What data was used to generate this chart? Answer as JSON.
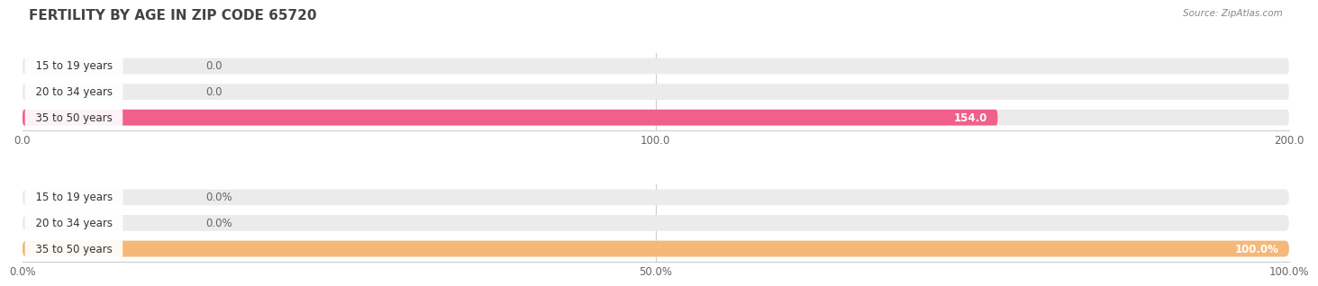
{
  "title": "FERTILITY BY AGE IN ZIP CODE 65720",
  "source": "Source: ZipAtlas.com",
  "top_chart": {
    "categories": [
      "15 to 19 years",
      "20 to 34 years",
      "35 to 50 years"
    ],
    "values": [
      0.0,
      0.0,
      154.0
    ],
    "bar_color": "#f0608a",
    "label_color_inside": "#ffffff",
    "label_color_outside": "#666666",
    "xlim": [
      0,
      200
    ],
    "xticks": [
      0.0,
      100.0,
      200.0
    ],
    "xtick_labels": [
      "0.0",
      "100.0",
      "200.0"
    ],
    "bg_color": "#ebebeb"
  },
  "bottom_chart": {
    "categories": [
      "15 to 19 years",
      "20 to 34 years",
      "35 to 50 years"
    ],
    "values": [
      0.0,
      0.0,
      100.0
    ],
    "bar_color": "#f5b878",
    "label_color_inside": "#ffffff",
    "label_color_outside": "#666666",
    "xlim": [
      0,
      100
    ],
    "xticks": [
      0.0,
      50.0,
      100.0
    ],
    "xtick_labels": [
      "0.0%",
      "50.0%",
      "100.0%"
    ],
    "bg_color": "#ebebeb"
  },
  "background_color": "#ffffff",
  "title_fontsize": 11,
  "label_fontsize": 8.5,
  "tick_fontsize": 8.5,
  "bar_height": 0.62,
  "category_label_color": "#333333",
  "category_label_fontsize": 8.5
}
